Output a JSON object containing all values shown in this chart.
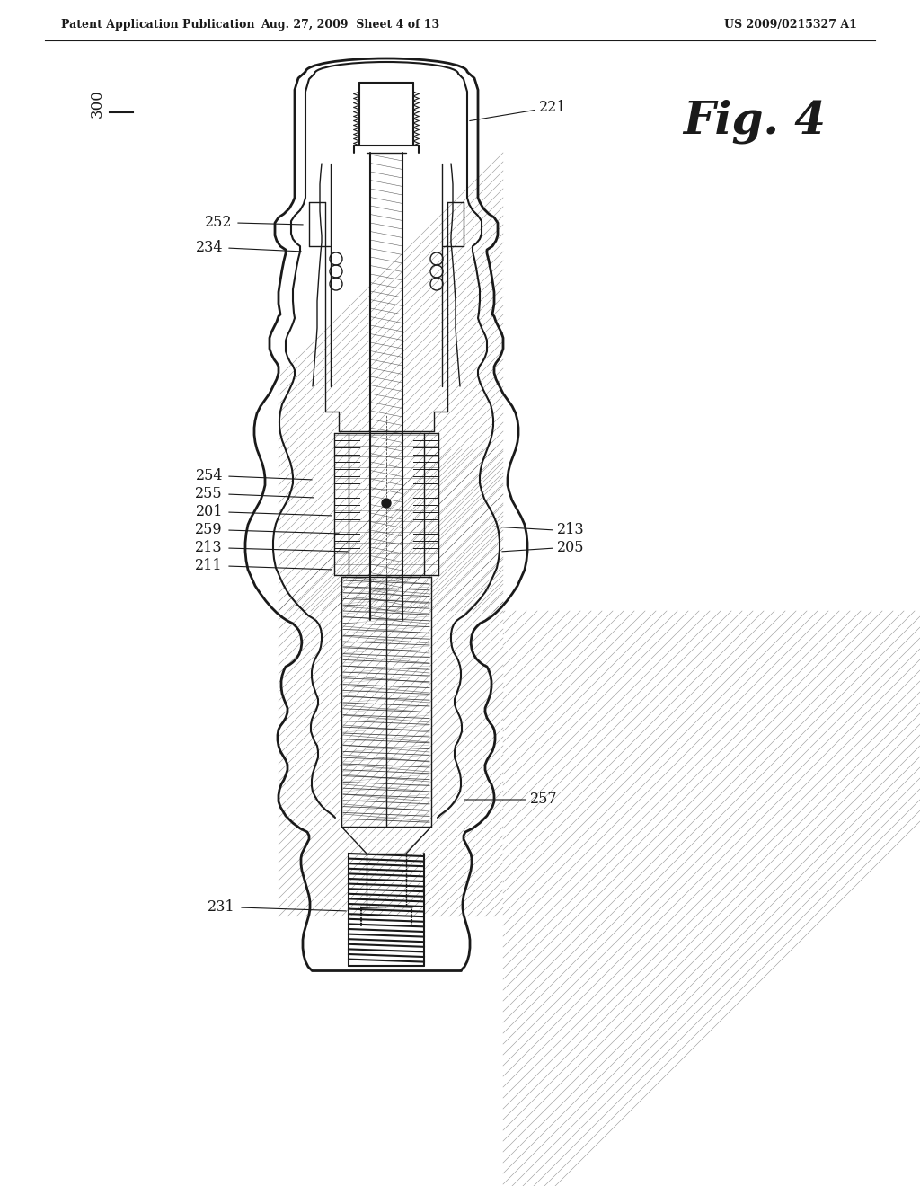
{
  "title_left": "Patent Application Publication",
  "title_center": "Aug. 27, 2009  Sheet 4 of 13",
  "title_right": "US 2009/0215327 A1",
  "fig_label": "Fig. 4",
  "ref_300": "300",
  "ref_221": "221",
  "ref_252": "252",
  "ref_234": "234",
  "ref_254": "254",
  "ref_255": "255",
  "ref_201": "201",
  "ref_259": "259",
  "ref_213_left": "213",
  "ref_211": "211",
  "ref_213_right": "213",
  "ref_205": "205",
  "ref_257": "257",
  "ref_231": "231",
  "background": "#ffffff",
  "line_color": "#1a1a1a"
}
